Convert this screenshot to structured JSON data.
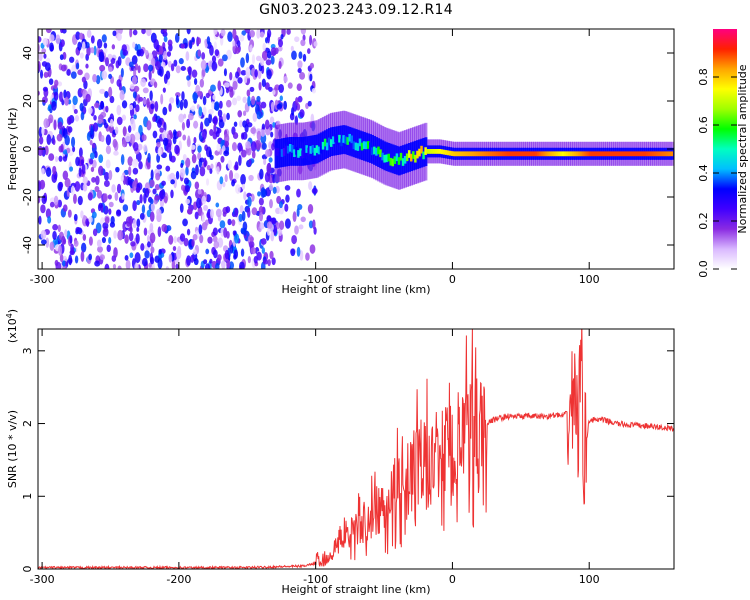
{
  "title": "GN03.2023.243.09.12.R14",
  "chart_data": [
    {
      "type": "heatmap",
      "xlabel": "Height of straight line (km)",
      "ylabel": "Frequency (Hz)",
      "xlim": [
        -303,
        162
      ],
      "ylim": [
        -50,
        50
      ],
      "x_ticks": [
        -300,
        -200,
        -100,
        0,
        100
      ],
      "x_tick_labels": [
        "-300",
        "-200",
        "-100",
        "0",
        "100"
      ],
      "y_ticks": [
        -40,
        -20,
        0,
        20,
        40
      ],
      "y_tick_labels": [
        "-40",
        "-20",
        "0",
        "20",
        "40"
      ],
      "colorbar": {
        "label": "Normalized spectral amplitude",
        "range": [
          0,
          1
        ],
        "ticks": [
          0.0,
          0.2,
          0.4,
          0.6,
          0.8
        ],
        "tick_labels": [
          "0.0",
          "0.2",
          "0.4",
          "0.6",
          "0.8"
        ],
        "colors": [
          "#ffffff",
          "#d9b8ff",
          "#8a2be2",
          "#4000ff",
          "#0000ff",
          "#00bfff",
          "#00ffc0",
          "#00ff00",
          "#a0ff00",
          "#ffff00",
          "#ffa500",
          "#ff2000",
          "#ff0080"
        ]
      },
      "noise_region": {
        "x_range": [
          -303,
          -110
        ],
        "f_range": [
          -50,
          50
        ],
        "amplitude": 0.15
      },
      "signal_trace": [
        {
          "x": -130,
          "f": -2,
          "amp": 0.3
        },
        {
          "x": -120,
          "f": -1,
          "amp": 0.35
        },
        {
          "x": -110,
          "f": -1,
          "amp": 0.4
        },
        {
          "x": -100,
          "f": 0,
          "amp": 0.4
        },
        {
          "x": -90,
          "f": 3,
          "amp": 0.45
        },
        {
          "x": -80,
          "f": 4,
          "amp": 0.45
        },
        {
          "x": -70,
          "f": 2,
          "amp": 0.45
        },
        {
          "x": -60,
          "f": 0,
          "amp": 0.45
        },
        {
          "x": -50,
          "f": -3,
          "amp": 0.5
        },
        {
          "x": -40,
          "f": -5,
          "amp": 0.55
        },
        {
          "x": -30,
          "f": -3,
          "amp": 0.65
        },
        {
          "x": -20,
          "f": -1,
          "amp": 0.7
        },
        {
          "x": -10,
          "f": -1,
          "amp": 0.75
        },
        {
          "x": 0,
          "f": -2,
          "amp": 0.8
        },
        {
          "x": 20,
          "f": -2,
          "amp": 0.85
        },
        {
          "x": 40,
          "f": -2,
          "amp": 0.9
        },
        {
          "x": 60,
          "f": -2,
          "amp": 0.9
        },
        {
          "x": 80,
          "f": -2,
          "amp": 0.75
        },
        {
          "x": 100,
          "f": -2,
          "amp": 0.9
        },
        {
          "x": 120,
          "f": -2,
          "amp": 0.9
        },
        {
          "x": 140,
          "f": -2,
          "amp": 0.9
        },
        {
          "x": 160,
          "f": -2,
          "amp": 0.85
        }
      ]
    },
    {
      "type": "line",
      "xlabel": "Height of straight line (km)",
      "ylabel": "SNR (10 * v/v)",
      "y_exponent_label": "(x10",
      "y_exponent_power": "4",
      "y_exponent_close": ")",
      "xlim": [
        -303,
        162
      ],
      "ylim": [
        0,
        3.3
      ],
      "x_ticks": [
        -300,
        -200,
        -100,
        0,
        100
      ],
      "x_tick_labels": [
        "-300",
        "-200",
        "-100",
        "0",
        "100"
      ],
      "y_ticks": [
        0,
        1,
        2,
        3
      ],
      "y_tick_labels": [
        "0",
        "1",
        "2",
        "3"
      ],
      "color": "#ee3333",
      "x": [
        -303,
        -250,
        -200,
        -150,
        -110,
        -95,
        -85,
        -75,
        -65,
        -55,
        -45,
        -35,
        -25,
        -15,
        -5,
        0,
        5,
        10,
        15,
        20,
        25,
        30,
        40,
        50,
        60,
        70,
        75,
        80,
        85,
        88,
        90,
        92,
        94,
        96,
        100,
        110,
        120,
        130,
        140,
        150,
        162
      ],
      "values": [
        0.02,
        0.02,
        0.02,
        0.02,
        0.04,
        0.1,
        0.3,
        0.55,
        0.6,
        0.8,
        1.0,
        1.2,
        1.4,
        1.5,
        1.6,
        1.6,
        1.7,
        1.8,
        1.85,
        1.95,
        2.0,
        2.05,
        2.1,
        2.1,
        2.1,
        2.1,
        2.12,
        2.1,
        2.15,
        2.3,
        2.6,
        1.6,
        3.3,
        1.5,
        2.05,
        2.05,
        2.0,
        1.98,
        1.97,
        1.95,
        1.93
      ]
    }
  ]
}
